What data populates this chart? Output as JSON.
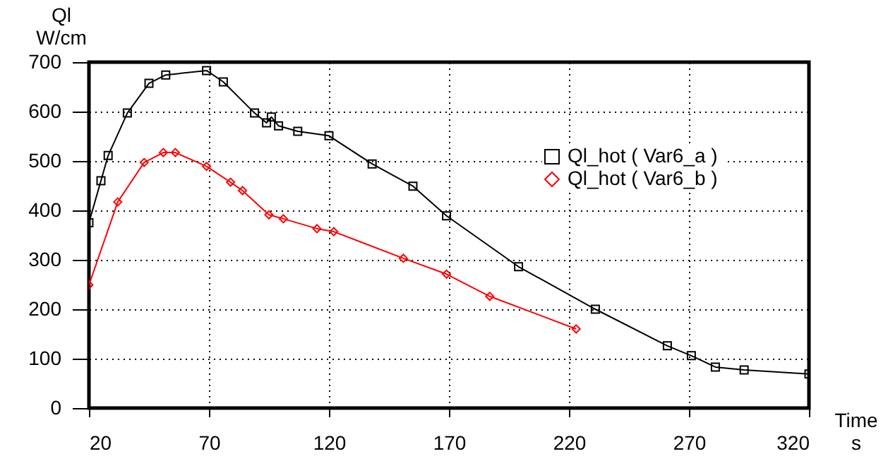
{
  "chart_data": {
    "type": "line",
    "xlabel": "Time\ns",
    "ylabel": "Ql\nW/cm",
    "x": [
      20,
      25,
      28,
      36,
      45,
      52,
      69,
      76,
      89,
      94,
      96,
      99,
      107,
      120,
      138,
      155,
      169,
      199,
      231,
      261,
      271,
      281,
      293,
      320
    ],
    "series": [
      {
        "name": "Ql_hot  ( Var6_a )",
        "color": "#000000",
        "marker": "square",
        "values": [
          375,
          460,
          511,
          597,
          657,
          674,
          683,
          660,
          597,
          577,
          589,
          571,
          560,
          551,
          494,
          449,
          389,
          286,
          200,
          126,
          106,
          83,
          77,
          69
        ]
      },
      {
        "name": "Ql_hot  ( Var6_b )",
        "color": "#ff0000",
        "marker": "diamond",
        "x": [
          20,
          32,
          43,
          51,
          56,
          69,
          79,
          84,
          95,
          101,
          115,
          122,
          151,
          169,
          187,
          223
        ],
        "values": [
          249,
          417,
          497,
          517,
          517,
          489,
          457,
          440,
          391,
          383,
          363,
          357,
          303,
          271,
          226,
          160
        ]
      }
    ],
    "xlim": [
      20,
      320
    ],
    "xticks": [
      20,
      70,
      120,
      170,
      220,
      270,
      320
    ],
    "ylim": [
      0,
      700
    ],
    "yticks": [
      0,
      100,
      200,
      300,
      400,
      500,
      600,
      700
    ],
    "grid": true,
    "legend": "top right",
    "line_style": "solid"
  }
}
